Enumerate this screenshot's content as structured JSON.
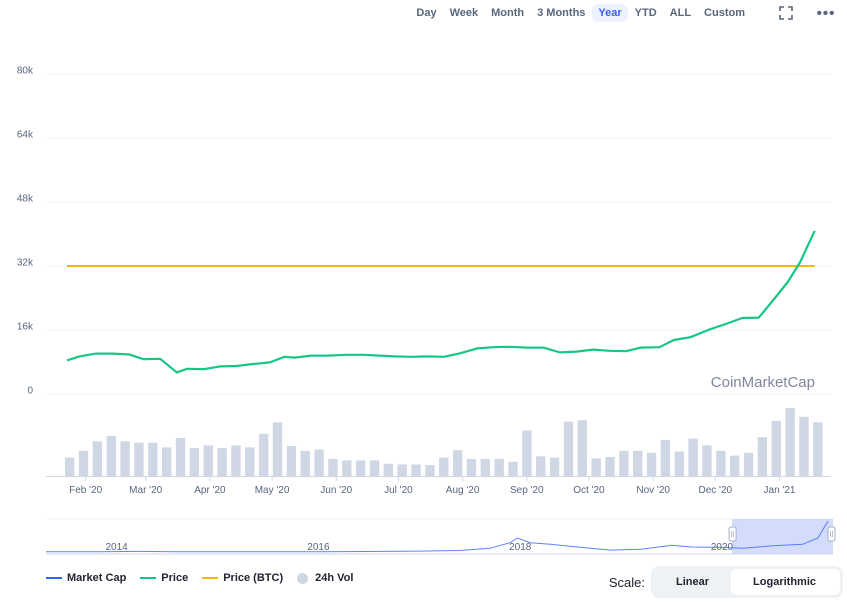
{
  "toolbar": {
    "ranges": [
      "Day",
      "Week",
      "Month",
      "3 Months",
      "Year",
      "YTD",
      "ALL",
      "Custom"
    ],
    "active_range": "Year",
    "fullscreen_icon": "fullscreen-icon",
    "more_icon": "more-icon",
    "more_glyph": "•••"
  },
  "watermark": "CoinMarketCap",
  "colors": {
    "price": "#16c784",
    "price_btc": "#f0b90b",
    "volume": "#cfd6e4",
    "market_cap": "#3861fb",
    "selection": "#c9d3fb",
    "grid": "#eff2f5"
  },
  "chart_data": {
    "type": "line",
    "xlabel": "",
    "ylabel": "",
    "ylim": [
      0,
      80000
    ],
    "yticks": [
      "0",
      "16k",
      "32k",
      "48k",
      "64k",
      "80k"
    ],
    "ytick_values": [
      0,
      16000,
      32000,
      48000,
      64000,
      80000
    ],
    "xticks": [
      "Feb '20",
      "Mar '20",
      "Apr '20",
      "May '20",
      "Jun '20",
      "Jul '20",
      "Aug '20",
      "Sep '20",
      "Oct '20",
      "Nov '20",
      "Dec '20",
      "Jan '21"
    ],
    "x_range": [
      0,
      365
    ],
    "xtick_days": [
      9,
      38,
      69,
      99,
      130,
      160,
      191,
      222,
      252,
      283,
      313,
      344
    ],
    "grid": true,
    "legend_position": "bottom-left",
    "series": [
      {
        "name": "Price",
        "x": [
          0,
          6,
          14,
          22,
          30,
          37,
          45,
          53,
          58,
          66,
          74,
          82,
          88,
          98,
          105,
          110,
          118,
          126,
          135,
          143,
          151,
          158,
          166,
          174,
          182,
          190,
          198,
          206,
          214,
          222,
          230,
          238,
          246,
          254,
          262,
          270,
          277,
          286,
          293,
          301,
          310,
          318,
          326,
          334,
          341,
          348,
          354,
          361
        ],
        "values": [
          8400,
          9400,
          10100,
          10100,
          9900,
          8700,
          8800,
          5400,
          6300,
          6200,
          6900,
          7000,
          7400,
          7900,
          9300,
          9100,
          9600,
          9600,
          9800,
          9800,
          9600,
          9400,
          9300,
          9400,
          9300,
          10200,
          11400,
          11700,
          11800,
          11600,
          11600,
          10400,
          10600,
          11100,
          10800,
          10700,
          11600,
          11700,
          13500,
          14200,
          16100,
          17500,
          19000,
          19100,
          23500,
          28000,
          33000,
          40800
        ]
      },
      {
        "name": "Price (BTC)",
        "x": [
          0,
          365
        ],
        "values": [
          32000,
          32000
        ]
      }
    ],
    "volume": {
      "name": "24h Vol",
      "values": [
        0.27,
        0.37,
        0.51,
        0.59,
        0.51,
        0.49,
        0.49,
        0.42,
        0.56,
        0.41,
        0.45,
        0.41,
        0.45,
        0.42,
        0.62,
        0.79,
        0.44,
        0.37,
        0.39,
        0.25,
        0.23,
        0.23,
        0.23,
        0.18,
        0.17,
        0.17,
        0.16,
        0.27,
        0.38,
        0.25,
        0.25,
        0.25,
        0.21,
        0.67,
        0.29,
        0.27,
        0.8,
        0.82,
        0.26,
        0.28,
        0.37,
        0.37,
        0.34,
        0.53,
        0.36,
        0.55,
        0.45,
        0.37,
        0.3,
        0.34,
        0.57,
        0.81,
        1.0,
        0.87,
        0.79
      ]
    },
    "navigator": {
      "name": "Market Cap",
      "labels": [
        "2014",
        "2016",
        "2018",
        "2020"
      ],
      "label_years": [
        2014,
        2016,
        2018,
        2020
      ],
      "x_range": [
        2013.3,
        2021.1
      ],
      "years": [
        2013.3,
        2013.8,
        2014.2,
        2014.6,
        2015.0,
        2015.5,
        2016.0,
        2016.5,
        2017.0,
        2017.4,
        2017.7,
        2017.9,
        2017.97,
        2018.1,
        2018.3,
        2018.6,
        2018.9,
        2019.2,
        2019.5,
        2019.7,
        2020.0,
        2020.2,
        2020.5,
        2020.8,
        2020.95,
        2021.05
      ],
      "values": [
        0.005,
        0.01,
        0.02,
        0.01,
        0.01,
        0.01,
        0.01,
        0.015,
        0.03,
        0.05,
        0.12,
        0.3,
        0.45,
        0.3,
        0.25,
        0.15,
        0.06,
        0.09,
        0.22,
        0.16,
        0.15,
        0.12,
        0.2,
        0.25,
        0.45,
        1.0
      ],
      "selection_years": [
        2020.1,
        2021.1
      ]
    }
  },
  "legend": {
    "items": [
      {
        "label": "Market Cap"
      },
      {
        "label": "Price"
      },
      {
        "label": "Price (BTC)"
      },
      {
        "label": "24h Vol"
      }
    ]
  },
  "scale": {
    "label": "Scale:",
    "linear": "Linear",
    "log": "Logarithmic",
    "active": "Logarithmic"
  }
}
